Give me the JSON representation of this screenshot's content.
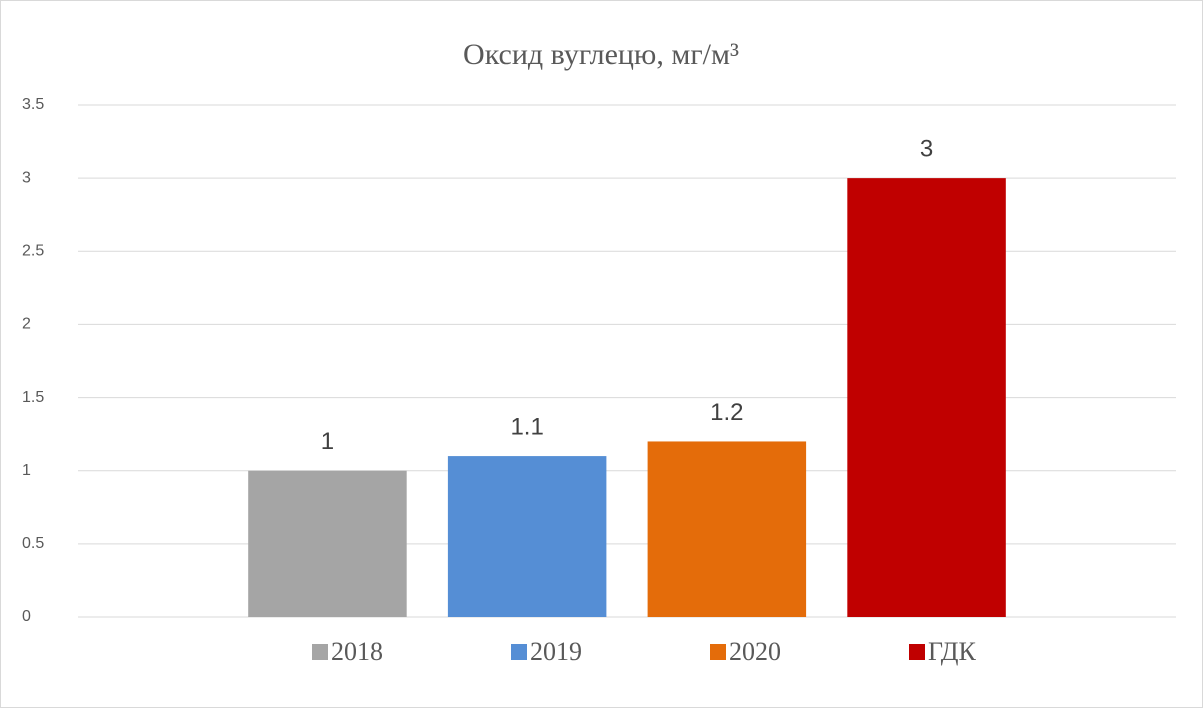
{
  "chart_data": {
    "type": "bar",
    "title": "Оксид вуглецю, мг/м³",
    "categories": [
      null
    ],
    "series": [
      {
        "name": "2018",
        "color": "#a5a5a5",
        "values": [
          1
        ]
      },
      {
        "name": "2019",
        "color": "#558ed5",
        "values": [
          1.1
        ]
      },
      {
        "name": "2020",
        "color": "#e46c0a",
        "values": [
          1.2
        ]
      },
      {
        "name": "ГДК",
        "color": "#c00000",
        "values": [
          3
        ]
      }
    ],
    "ylim": [
      0,
      3.5
    ],
    "yticks": [
      0,
      0.5,
      1,
      1.5,
      2,
      2.5,
      3,
      3.5
    ],
    "grid": true,
    "legend": "bottom"
  }
}
